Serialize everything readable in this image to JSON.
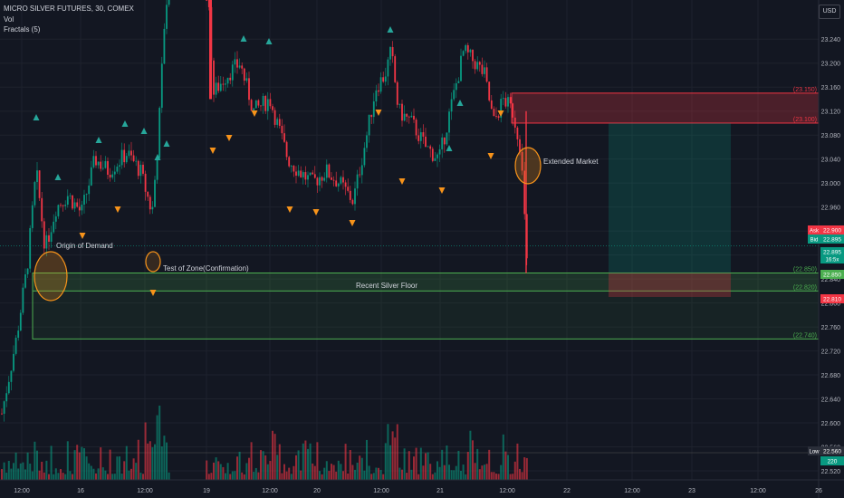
{
  "header": {
    "symbol": "MICRO SILVER FUTURES, 30, COMEX",
    "volume": "Vol",
    "indicator": "Fractals (5)",
    "currency": "USD"
  },
  "annotations": {
    "origin": "Origin of Demand",
    "test": "Test of Zone(Confirmation)",
    "extended": "Extended Market",
    "floor": "Recent Silver Floor"
  },
  "chart_data": {
    "type": "candlestick",
    "price_range": [
      22.52,
      23.26
    ],
    "y_ticks": [
      "23.240",
      "23.200",
      "23.160",
      "23.120",
      "23.080",
      "23.040",
      "23.000",
      "22.960",
      "22.920",
      "22.880",
      "22.840",
      "22.800",
      "22.760",
      "22.720",
      "22.680",
      "22.640",
      "22.600",
      "22.560",
      "22.520"
    ],
    "x_ticks": [
      "12:00",
      "16",
      "12:00",
      "19",
      "12:00",
      "20",
      "12:00",
      "21",
      "12:00",
      "22",
      "12:00",
      "23",
      "12:00",
      "26"
    ],
    "zones": [
      {
        "name": "Supply zone",
        "top": 23.15,
        "bottom": 23.1,
        "top_label": "(23.150)",
        "bottom_label": "(23.100)",
        "color": "#f23645"
      },
      {
        "name": "Recent Silver Floor",
        "top": 22.85,
        "bottom": 22.82,
        "top_label": "(22.850)",
        "bottom_label": "(22.820)",
        "color": "#4caf50"
      },
      {
        "name": "Demand zone",
        "top": 22.85,
        "bottom": 22.74,
        "bottom_label": "(22.740)",
        "color": "#4caf50"
      }
    ],
    "price_tags": [
      {
        "text": "Ask",
        "value": "22.900",
        "color": "#f23645"
      },
      {
        "text": "Bid",
        "value": "22.895",
        "color": "#089981"
      },
      {
        "text": "",
        "value": "22.895",
        "sub": "16:5x",
        "color": "#089981"
      },
      {
        "text": "",
        "value": "22.850",
        "color": "#4caf50"
      },
      {
        "text": "",
        "value": "22.810",
        "color": "#f23645"
      },
      {
        "text": "Low",
        "value": "22.560",
        "color": "#2a2e39"
      },
      {
        "text": "",
        "value": "220",
        "color": "#089981"
      }
    ],
    "position": {
      "entry": 22.85,
      "target": 23.1,
      "stop": 22.81
    }
  }
}
